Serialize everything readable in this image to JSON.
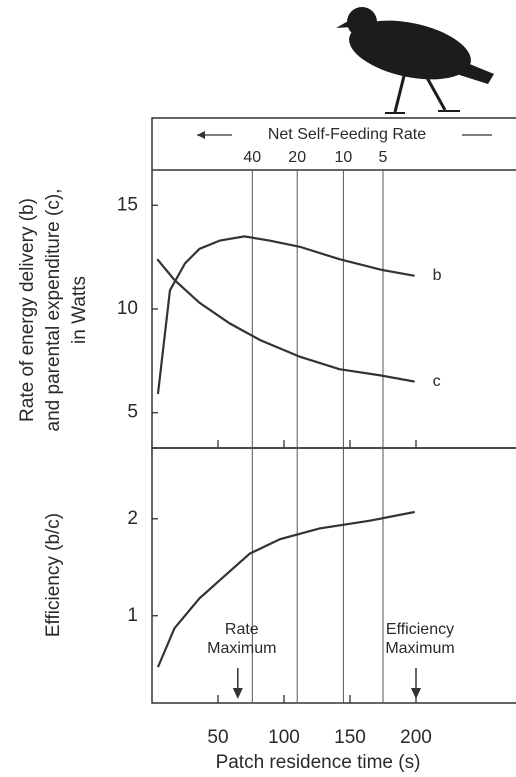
{
  "chart_data": [
    {
      "type": "line",
      "ylabel": [
        "Rate of energy delivery (b)",
        "and parental expenditure (c),",
        "in Watts"
      ],
      "x2label": "Net Self-Feeding Rate",
      "x2ticks": [
        {
          "value": 76,
          "label": "40"
        },
        {
          "value": 110,
          "label": "20"
        },
        {
          "value": 145,
          "label": "10"
        },
        {
          "value": 175,
          "label": "5"
        }
      ],
      "xlim": [
        0,
        275
      ],
      "ylim": [
        3.3,
        16.7
      ],
      "yticks": [
        5,
        10,
        15
      ],
      "series": [
        {
          "name": "b",
          "color": "#333333",
          "x": [
            4.5,
            13.6,
            25,
            36,
            51.5,
            70,
            89,
            112,
            142,
            173,
            199
          ],
          "values": [
            5.9,
            10.9,
            12.2,
            12.9,
            13.3,
            13.5,
            13.3,
            13.0,
            12.4,
            11.9,
            11.6
          ]
        },
        {
          "name": "c",
          "color": "#333333",
          "x": [
            4,
            17,
            36,
            59,
            82,
            112,
            142,
            173,
            199
          ],
          "values": [
            12.4,
            11.4,
            10.3,
            9.3,
            8.5,
            7.7,
            7.1,
            6.8,
            6.5
          ]
        }
      ]
    },
    {
      "type": "line",
      "ylabel": [
        "Efficiency (b/c)"
      ],
      "xlabel": "Patch residence time (s)",
      "xlim": [
        0,
        275
      ],
      "ylim": [
        0.1,
        2.73
      ],
      "xticks": [
        50,
        100,
        150,
        200
      ],
      "yticks": [
        1,
        2
      ],
      "series": [
        {
          "name": "Efficiency",
          "color": "#333333",
          "x": [
            4.5,
            17,
            36,
            55,
            74,
            97,
            127,
            165,
            199
          ],
          "values": [
            0.47,
            0.87,
            1.18,
            1.41,
            1.64,
            1.79,
            1.9,
            1.98,
            2.07
          ]
        }
      ],
      "annotations": [
        {
          "text": [
            "Rate",
            "Maximum"
          ],
          "x": 65
        },
        {
          "text": [
            "Efficiency",
            "Maximum"
          ],
          "x": 200
        }
      ]
    }
  ]
}
